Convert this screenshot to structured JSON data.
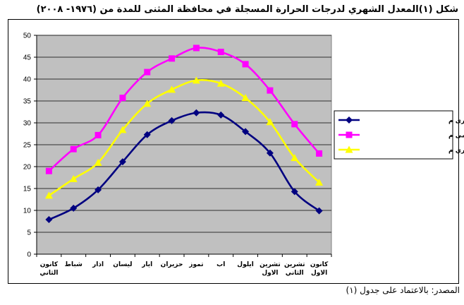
{
  "title": "شكل (١)المعدل الشهري لدرجات الحرارة المسجلة في محافظة المثنى للمدة من  (١٩٧٦- ٢٠٠٨)",
  "source": "المصدر: بالاعتماد على جدول (١)",
  "chart_data": {
    "type": "line",
    "categories": [
      [
        "كانون",
        "الثاني"
      ],
      [
        "شباط"
      ],
      [
        "اذار"
      ],
      [
        "ليسان"
      ],
      [
        "ايار"
      ],
      [
        "حزيران"
      ],
      [
        "تموز"
      ],
      [
        "اب"
      ],
      [
        "ايلول"
      ],
      [
        "تشرين",
        "الاول"
      ],
      [
        "تشرين",
        "الثاني"
      ],
      [
        "كانون",
        "الاول"
      ]
    ],
    "yticks": [
      "0",
      "5",
      "10",
      "15",
      "20",
      "25",
      "30",
      "35",
      "40",
      "45",
      "50"
    ],
    "ylim": [
      0,
      50
    ],
    "grid": true,
    "legend": "right",
    "series": [
      {
        "name": "معل درجة الحرارة الصغرى م",
        "color": "#000080",
        "marker": "diamond",
        "values": [
          7.9,
          10.5,
          14.7,
          21.1,
          27.3,
          30.5,
          32.3,
          31.8,
          28.0,
          23.1,
          14.3,
          9.9
        ]
      },
      {
        "name": "معدل درجة الحرارة العظمى م",
        "color": "#ff00ff",
        "marker": "square",
        "values": [
          19.0,
          24.0,
          27.2,
          35.7,
          41.6,
          44.7,
          47.1,
          46.2,
          43.4,
          37.4,
          29.7,
          23.0
        ]
      },
      {
        "name": "المعدل الشهري م",
        "color": "#ffff00",
        "marker": "triangle",
        "values": [
          13.4,
          17.2,
          20.9,
          28.4,
          34.4,
          37.6,
          39.7,
          39.0,
          35.7,
          30.2,
          22.0,
          16.4
        ]
      }
    ]
  }
}
